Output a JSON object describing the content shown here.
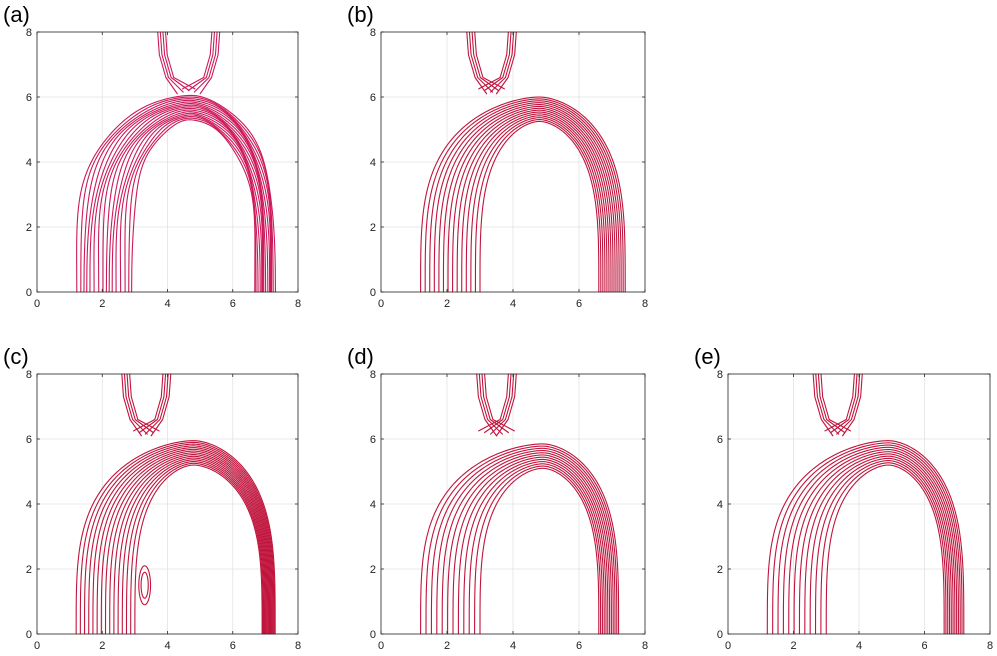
{
  "colors": {
    "contour": "#c0143c",
    "contour_a": "#cc1a5a"
  },
  "chart_data": [
    {
      "panel_label": "(a)",
      "type": "contour",
      "xlim": [
        0,
        8
      ],
      "ylim": [
        0,
        8
      ],
      "xticks": [
        "0",
        "2",
        "4",
        "6",
        "8"
      ],
      "yticks": [
        "0",
        "2",
        "4",
        "6",
        "8"
      ],
      "grid": true,
      "arch": {
        "apex_x": 4.7,
        "apex_y_inner": 5.3,
        "inner_base": [
          2.9,
          6.7
        ],
        "outer_base": [
          1.2,
          7.3
        ]
      },
      "contour_count": 16,
      "chimney_x": [
        3.7,
        5.6
      ]
    },
    {
      "panel_label": "(b)",
      "type": "contour",
      "xlim": [
        0,
        8
      ],
      "ylim": [
        0,
        8
      ],
      "xticks": [
        "0",
        "2",
        "4",
        "6",
        "8"
      ],
      "yticks": [
        "0",
        "2",
        "4",
        "6",
        "8"
      ],
      "grid": true,
      "arch": {
        "apex_x": 4.8,
        "apex_y_inner": 5.25,
        "inner_base": [
          3.0,
          6.6
        ],
        "outer_base": [
          1.2,
          7.4
        ]
      },
      "contour_count": 14,
      "chimney_x": [
        2.6,
        4.1
      ]
    },
    {
      "panel_label": "(c)",
      "type": "contour",
      "xlim": [
        0,
        8
      ],
      "ylim": [
        0,
        8
      ],
      "xticks": [
        "0",
        "2",
        "4",
        "6",
        "8"
      ],
      "yticks": [
        "0",
        "2",
        "4",
        "6",
        "8"
      ],
      "grid": true,
      "arch": {
        "apex_x": 4.8,
        "apex_y_inner": 5.2,
        "inner_base": [
          3.0,
          6.9
        ],
        "outer_base": [
          1.2,
          7.3
        ]
      },
      "contour_count": 15,
      "chimney_x": [
        2.6,
        4.1
      ],
      "loop": {
        "x": 3.3,
        "y": 1.5
      }
    },
    {
      "panel_label": "(d)",
      "type": "contour",
      "xlim": [
        0,
        8
      ],
      "ylim": [
        0,
        8
      ],
      "xticks": [
        "0",
        "2",
        "4",
        "6",
        "8"
      ],
      "yticks": [
        "0",
        "2",
        "4",
        "6",
        "8"
      ],
      "grid": true,
      "arch": {
        "apex_x": 4.9,
        "apex_y_inner": 5.1,
        "inner_base": [
          3.0,
          6.6
        ],
        "outer_base": [
          1.2,
          7.2
        ]
      },
      "contour_count": 12,
      "chimney_x": [
        2.9,
        4.1
      ]
    },
    {
      "panel_label": "(e)",
      "type": "contour",
      "xlim": [
        0,
        8
      ],
      "ylim": [
        0,
        8
      ],
      "xticks": [
        "0",
        "2",
        "4",
        "6",
        "8"
      ],
      "yticks": [
        "0",
        "2",
        "4",
        "6",
        "8"
      ],
      "grid": true,
      "arch": {
        "apex_x": 4.9,
        "apex_y_inner": 5.2,
        "inner_base": [
          3.0,
          6.6
        ],
        "outer_base": [
          1.2,
          7.2
        ]
      },
      "contour_count": 12,
      "chimney_x": [
        2.6,
        4.1
      ]
    }
  ]
}
